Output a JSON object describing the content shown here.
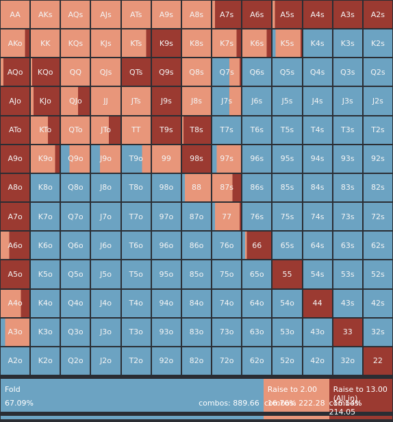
{
  "colors": {
    "fold": "#6ca3c2",
    "raise": "#e8967a",
    "allin": "#9b3a31"
  },
  "grid": {
    "rows": [
      [
        {
          "label": "AA",
          "fold": 0,
          "raise": 1,
          "allin": 0
        },
        {
          "label": "AKs",
          "fold": 0,
          "raise": 1,
          "allin": 0
        },
        {
          "label": "AQs",
          "fold": 0,
          "raise": 1,
          "allin": 0
        },
        {
          "label": "AJs",
          "fold": 0,
          "raise": 1,
          "allin": 0
        },
        {
          "label": "ATs",
          "fold": 0,
          "raise": 1,
          "allin": 0
        },
        {
          "label": "A9s",
          "fold": 0,
          "raise": 1,
          "allin": 0
        },
        {
          "label": "A8s",
          "fold": 0,
          "raise": 1,
          "allin": 0
        },
        {
          "label": "A7s",
          "fold": 0,
          "raise": 0.1,
          "allin": 0.9
        },
        {
          "label": "A6s",
          "fold": 0,
          "raise": 0,
          "allin": 1
        },
        {
          "label": "A5s",
          "fold": 0,
          "raise": 0.08,
          "allin": 0.92
        },
        {
          "label": "A4s",
          "fold": 0,
          "raise": 0,
          "allin": 1
        },
        {
          "label": "A3s",
          "fold": 0,
          "raise": 0,
          "allin": 1
        },
        {
          "label": "A2s",
          "fold": 0,
          "raise": 0,
          "allin": 1
        }
      ],
      [
        {
          "label": "AKo",
          "fold": 0,
          "raise": 0.85,
          "allin": 0.15
        },
        {
          "label": "KK",
          "fold": 0,
          "raise": 1,
          "allin": 0
        },
        {
          "label": "KQs",
          "fold": 0,
          "raise": 1,
          "allin": 0
        },
        {
          "label": "KJs",
          "fold": 0,
          "raise": 1,
          "allin": 0
        },
        {
          "label": "KTs",
          "fold": 0,
          "raise": 0.85,
          "allin": 0.15
        },
        {
          "label": "K9s",
          "fold": 0,
          "raise": 0,
          "allin": 1
        },
        {
          "label": "K8s",
          "fold": 0,
          "raise": 1,
          "allin": 0
        },
        {
          "label": "K7s",
          "fold": 0,
          "raise": 0.85,
          "allin": 0.15
        },
        {
          "label": "K6s",
          "fold": 0,
          "raise": 0.85,
          "allin": 0.15
        },
        {
          "label": "K5s",
          "fold": 0.1,
          "raise": 0.85,
          "allin": 0.05
        },
        {
          "label": "K4s",
          "fold": 1,
          "raise": 0,
          "allin": 0
        },
        {
          "label": "K3s",
          "fold": 1,
          "raise": 0,
          "allin": 0
        },
        {
          "label": "K2s",
          "fold": 1,
          "raise": 0,
          "allin": 0
        }
      ],
      [
        {
          "label": "AQo",
          "fold": 0,
          "raise": 0.1,
          "allin": 0.9
        },
        {
          "label": "KQo",
          "fold": 0,
          "raise": 0.05,
          "allin": 0.95
        },
        {
          "label": "QQ",
          "fold": 0,
          "raise": 1,
          "allin": 0
        },
        {
          "label": "QJs",
          "fold": 0,
          "raise": 1,
          "allin": 0
        },
        {
          "label": "QTs",
          "fold": 0,
          "raise": 0,
          "allin": 1
        },
        {
          "label": "Q9s",
          "fold": 0,
          "raise": 0,
          "allin": 1
        },
        {
          "label": "Q8s",
          "fold": 0,
          "raise": 1,
          "allin": 0
        },
        {
          "label": "Q7s",
          "fold": 0.6,
          "raise": 0.35,
          "allin": 0.05
        },
        {
          "label": "Q6s",
          "fold": 1,
          "raise": 0,
          "allin": 0
        },
        {
          "label": "Q5s",
          "fold": 1,
          "raise": 0,
          "allin": 0
        },
        {
          "label": "Q4s",
          "fold": 1,
          "raise": 0,
          "allin": 0
        },
        {
          "label": "Q3s",
          "fold": 1,
          "raise": 0,
          "allin": 0
        },
        {
          "label": "Q2s",
          "fold": 1,
          "raise": 0,
          "allin": 0
        }
      ],
      [
        {
          "label": "AJo",
          "fold": 0,
          "raise": 0,
          "allin": 1
        },
        {
          "label": "KJo",
          "fold": 0,
          "raise": 0.1,
          "allin": 0.9
        },
        {
          "label": "QJo",
          "fold": 0,
          "raise": 0.6,
          "allin": 0.4
        },
        {
          "label": "JJ",
          "fold": 0,
          "raise": 1,
          "allin": 0
        },
        {
          "label": "JTs",
          "fold": 0,
          "raise": 1,
          "allin": 0
        },
        {
          "label": "J9s",
          "fold": 0,
          "raise": 0,
          "allin": 1
        },
        {
          "label": "J8s",
          "fold": 0,
          "raise": 1,
          "allin": 0
        },
        {
          "label": "J7s",
          "fold": 0.6,
          "raise": 0.4,
          "allin": 0
        },
        {
          "label": "J6s",
          "fold": 1,
          "raise": 0,
          "allin": 0
        },
        {
          "label": "J5s",
          "fold": 1,
          "raise": 0,
          "allin": 0
        },
        {
          "label": "J4s",
          "fold": 1,
          "raise": 0,
          "allin": 0
        },
        {
          "label": "J3s",
          "fold": 1,
          "raise": 0,
          "allin": 0
        },
        {
          "label": "J2s",
          "fold": 1,
          "raise": 0,
          "allin": 0
        }
      ],
      [
        {
          "label": "ATo",
          "fold": 0,
          "raise": 0,
          "allin": 1
        },
        {
          "label": "KTo",
          "fold": 0,
          "raise": 0.6,
          "allin": 0.4
        },
        {
          "label": "QTo",
          "fold": 0,
          "raise": 1,
          "allin": 0
        },
        {
          "label": "JTo",
          "fold": 0,
          "raise": 0.6,
          "allin": 0.4
        },
        {
          "label": "TT",
          "fold": 0,
          "raise": 1,
          "allin": 0
        },
        {
          "label": "T9s",
          "fold": 0,
          "raise": 0,
          "allin": 1
        },
        {
          "label": "T8s",
          "fold": 0,
          "raise": 0.05,
          "allin": 0.95
        },
        {
          "label": "T7s",
          "fold": 1,
          "raise": 0,
          "allin": 0
        },
        {
          "label": "T6s",
          "fold": 1,
          "raise": 0,
          "allin": 0
        },
        {
          "label": "T5s",
          "fold": 1,
          "raise": 0,
          "allin": 0
        },
        {
          "label": "T4s",
          "fold": 1,
          "raise": 0,
          "allin": 0
        },
        {
          "label": "T3s",
          "fold": 1,
          "raise": 0,
          "allin": 0
        },
        {
          "label": "T2s",
          "fold": 1,
          "raise": 0,
          "allin": 0
        }
      ],
      [
        {
          "label": "A9o",
          "fold": 0,
          "raise": 0,
          "allin": 1
        },
        {
          "label": "K9o",
          "fold": 0,
          "raise": 0.85,
          "allin": 0.15
        },
        {
          "label": "Q9o",
          "fold": 0.3,
          "raise": 0.7,
          "allin": 0
        },
        {
          "label": "J9o",
          "fold": 0.3,
          "raise": 0.7,
          "allin": 0
        },
        {
          "label": "T9o",
          "fold": 0.7,
          "raise": 0.3,
          "allin": 0
        },
        {
          "label": "99",
          "fold": 0,
          "raise": 1,
          "allin": 0
        },
        {
          "label": "98s",
          "fold": 0,
          "raise": 0,
          "allin": 1
        },
        {
          "label": "97s",
          "fold": 0.15,
          "raise": 0.85,
          "allin": 0
        },
        {
          "label": "96s",
          "fold": 1,
          "raise": 0,
          "allin": 0
        },
        {
          "label": "95s",
          "fold": 1,
          "raise": 0,
          "allin": 0
        },
        {
          "label": "94s",
          "fold": 1,
          "raise": 0,
          "allin": 0
        },
        {
          "label": "93s",
          "fold": 1,
          "raise": 0,
          "allin": 0
        },
        {
          "label": "92s",
          "fold": 1,
          "raise": 0,
          "allin": 0
        }
      ],
      [
        {
          "label": "A8o",
          "fold": 0,
          "raise": 0,
          "allin": 1
        },
        {
          "label": "K8o",
          "fold": 1,
          "raise": 0,
          "allin": 0
        },
        {
          "label": "Q8o",
          "fold": 1,
          "raise": 0,
          "allin": 0
        },
        {
          "label": "J8o",
          "fold": 1,
          "raise": 0,
          "allin": 0
        },
        {
          "label": "T8o",
          "fold": 1,
          "raise": 0,
          "allin": 0
        },
        {
          "label": "98o",
          "fold": 1,
          "raise": 0,
          "allin": 0
        },
        {
          "label": "88",
          "fold": 0.1,
          "raise": 0.9,
          "allin": 0
        },
        {
          "label": "87s",
          "fold": 0,
          "raise": 0.7,
          "allin": 0.3
        },
        {
          "label": "86s",
          "fold": 1,
          "raise": 0,
          "allin": 0
        },
        {
          "label": "85s",
          "fold": 1,
          "raise": 0,
          "allin": 0
        },
        {
          "label": "84s",
          "fold": 1,
          "raise": 0,
          "allin": 0
        },
        {
          "label": "83s",
          "fold": 1,
          "raise": 0,
          "allin": 0
        },
        {
          "label": "82s",
          "fold": 1,
          "raise": 0,
          "allin": 0
        }
      ],
      [
        {
          "label": "A7o",
          "fold": 0,
          "raise": 0,
          "allin": 1
        },
        {
          "label": "K7o",
          "fold": 1,
          "raise": 0,
          "allin": 0
        },
        {
          "label": "Q7o",
          "fold": 1,
          "raise": 0,
          "allin": 0
        },
        {
          "label": "J7o",
          "fold": 1,
          "raise": 0,
          "allin": 0
        },
        {
          "label": "T7o",
          "fold": 1,
          "raise": 0,
          "allin": 0
        },
        {
          "label": "97o",
          "fold": 1,
          "raise": 0,
          "allin": 0
        },
        {
          "label": "87o",
          "fold": 1,
          "raise": 0,
          "allin": 0
        },
        {
          "label": "77",
          "fold": 0.1,
          "raise": 0.85,
          "allin": 0.05
        },
        {
          "label": "76s",
          "fold": 1,
          "raise": 0,
          "allin": 0
        },
        {
          "label": "75s",
          "fold": 1,
          "raise": 0,
          "allin": 0
        },
        {
          "label": "74s",
          "fold": 1,
          "raise": 0,
          "allin": 0
        },
        {
          "label": "73s",
          "fold": 1,
          "raise": 0,
          "allin": 0
        },
        {
          "label": "72s",
          "fold": 1,
          "raise": 0,
          "allin": 0
        }
      ],
      [
        {
          "label": "A6o",
          "fold": 0,
          "raise": 0.3,
          "allin": 0.7
        },
        {
          "label": "K6o",
          "fold": 1,
          "raise": 0,
          "allin": 0
        },
        {
          "label": "Q6o",
          "fold": 1,
          "raise": 0,
          "allin": 0
        },
        {
          "label": "J6o",
          "fold": 1,
          "raise": 0,
          "allin": 0
        },
        {
          "label": "T6o",
          "fold": 1,
          "raise": 0,
          "allin": 0
        },
        {
          "label": "96o",
          "fold": 1,
          "raise": 0,
          "allin": 0
        },
        {
          "label": "86o",
          "fold": 1,
          "raise": 0,
          "allin": 0
        },
        {
          "label": "76o",
          "fold": 1,
          "raise": 0,
          "allin": 0
        },
        {
          "label": "66",
          "fold": 0.1,
          "raise": 0.05,
          "allin": 0.85
        },
        {
          "label": "65s",
          "fold": 1,
          "raise": 0,
          "allin": 0
        },
        {
          "label": "64s",
          "fold": 1,
          "raise": 0,
          "allin": 0
        },
        {
          "label": "63s",
          "fold": 1,
          "raise": 0,
          "allin": 0
        },
        {
          "label": "62s",
          "fold": 1,
          "raise": 0,
          "allin": 0
        }
      ],
      [
        {
          "label": "A5o",
          "fold": 0,
          "raise": 0,
          "allin": 1
        },
        {
          "label": "K5o",
          "fold": 1,
          "raise": 0,
          "allin": 0
        },
        {
          "label": "Q5o",
          "fold": 1,
          "raise": 0,
          "allin": 0
        },
        {
          "label": "J5o",
          "fold": 1,
          "raise": 0,
          "allin": 0
        },
        {
          "label": "T5o",
          "fold": 1,
          "raise": 0,
          "allin": 0
        },
        {
          "label": "95o",
          "fold": 1,
          "raise": 0,
          "allin": 0
        },
        {
          "label": "85o",
          "fold": 1,
          "raise": 0,
          "allin": 0
        },
        {
          "label": "75o",
          "fold": 1,
          "raise": 0,
          "allin": 0
        },
        {
          "label": "65o",
          "fold": 1,
          "raise": 0,
          "allin": 0
        },
        {
          "label": "55",
          "fold": 0,
          "raise": 0,
          "allin": 1
        },
        {
          "label": "54s",
          "fold": 1,
          "raise": 0,
          "allin": 0
        },
        {
          "label": "53s",
          "fold": 1,
          "raise": 0,
          "allin": 0
        },
        {
          "label": "52s",
          "fold": 1,
          "raise": 0,
          "allin": 0
        }
      ],
      [
        {
          "label": "A4o",
          "fold": 0,
          "raise": 0.7,
          "allin": 0.3
        },
        {
          "label": "K4o",
          "fold": 1,
          "raise": 0,
          "allin": 0
        },
        {
          "label": "Q4o",
          "fold": 1,
          "raise": 0,
          "allin": 0
        },
        {
          "label": "J4o",
          "fold": 1,
          "raise": 0,
          "allin": 0
        },
        {
          "label": "T4o",
          "fold": 1,
          "raise": 0,
          "allin": 0
        },
        {
          "label": "94o",
          "fold": 1,
          "raise": 0,
          "allin": 0
        },
        {
          "label": "84o",
          "fold": 1,
          "raise": 0,
          "allin": 0
        },
        {
          "label": "74o",
          "fold": 1,
          "raise": 0,
          "allin": 0
        },
        {
          "label": "64o",
          "fold": 1,
          "raise": 0,
          "allin": 0
        },
        {
          "label": "54o",
          "fold": 1,
          "raise": 0,
          "allin": 0
        },
        {
          "label": "44",
          "fold": 0,
          "raise": 0,
          "allin": 1
        },
        {
          "label": "43s",
          "fold": 1,
          "raise": 0,
          "allin": 0
        },
        {
          "label": "42s",
          "fold": 1,
          "raise": 0,
          "allin": 0
        }
      ],
      [
        {
          "label": "A3o",
          "fold": 0.15,
          "raise": 0.85,
          "allin": 0
        },
        {
          "label": "K3o",
          "fold": 1,
          "raise": 0,
          "allin": 0
        },
        {
          "label": "Q3o",
          "fold": 1,
          "raise": 0,
          "allin": 0
        },
        {
          "label": "J3o",
          "fold": 1,
          "raise": 0,
          "allin": 0
        },
        {
          "label": "T3o",
          "fold": 1,
          "raise": 0,
          "allin": 0
        },
        {
          "label": "93o",
          "fold": 1,
          "raise": 0,
          "allin": 0
        },
        {
          "label": "83o",
          "fold": 1,
          "raise": 0,
          "allin": 0
        },
        {
          "label": "73o",
          "fold": 1,
          "raise": 0,
          "allin": 0
        },
        {
          "label": "63o",
          "fold": 1,
          "raise": 0,
          "allin": 0
        },
        {
          "label": "53o",
          "fold": 1,
          "raise": 0,
          "allin": 0
        },
        {
          "label": "43o",
          "fold": 1,
          "raise": 0,
          "allin": 0
        },
        {
          "label": "33",
          "fold": 0,
          "raise": 0,
          "allin": 1
        },
        {
          "label": "32s",
          "fold": 1,
          "raise": 0,
          "allin": 0
        }
      ],
      [
        {
          "label": "A2o",
          "fold": 1,
          "raise": 0,
          "allin": 0
        },
        {
          "label": "K2o",
          "fold": 1,
          "raise": 0,
          "allin": 0
        },
        {
          "label": "Q2o",
          "fold": 1,
          "raise": 0,
          "allin": 0
        },
        {
          "label": "J2o",
          "fold": 1,
          "raise": 0,
          "allin": 0
        },
        {
          "label": "T2o",
          "fold": 1,
          "raise": 0,
          "allin": 0
        },
        {
          "label": "92o",
          "fold": 1,
          "raise": 0,
          "allin": 0
        },
        {
          "label": "82o",
          "fold": 1,
          "raise": 0,
          "allin": 0
        },
        {
          "label": "72o",
          "fold": 1,
          "raise": 0,
          "allin": 0
        },
        {
          "label": "62o",
          "fold": 1,
          "raise": 0,
          "allin": 0
        },
        {
          "label": "52o",
          "fold": 1,
          "raise": 0,
          "allin": 0
        },
        {
          "label": "42o",
          "fold": 1,
          "raise": 0,
          "allin": 0
        },
        {
          "label": "32o",
          "fold": 1,
          "raise": 0,
          "allin": 0
        },
        {
          "label": "22",
          "fold": 0,
          "raise": 0,
          "allin": 1
        }
      ]
    ]
  },
  "legend": {
    "fold": {
      "name": "Fold",
      "pct": "67.09%",
      "combos": "combos: 889.66",
      "share": 0.6709
    },
    "raise": {
      "name": "Raise to 2.00",
      "pct": "16.76%",
      "combos": "combos: 222.28",
      "share": 0.1676
    },
    "allin": {
      "name": "Raise to 13.00 (All in)",
      "pct": "16.14%",
      "combos": "combos: 214.05",
      "share": 0.1614
    }
  }
}
